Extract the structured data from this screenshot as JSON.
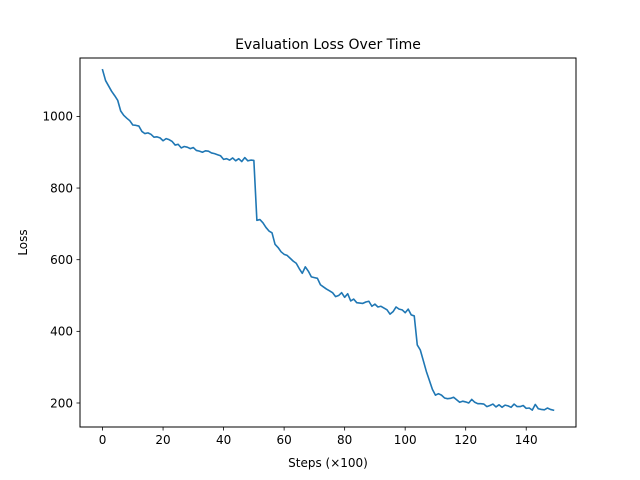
{
  "chart_data": {
    "type": "line",
    "title": "Evaluation Loss Over Time",
    "xlabel": "Steps (×100)",
    "ylabel": "Loss",
    "xlim": [
      -7.45,
      156.45
    ],
    "ylim": [
      133,
      1163
    ],
    "xticks": [
      0,
      20,
      40,
      60,
      80,
      100,
      120,
      140
    ],
    "yticks": [
      200,
      400,
      600,
      800,
      1000
    ],
    "grid": false,
    "line_color": "#1f77b4",
    "series": [
      {
        "values": [
          [
            0,
            1130
          ],
          [
            1,
            1100
          ],
          [
            2,
            1085
          ],
          [
            3,
            1070
          ],
          [
            4,
            1058
          ],
          [
            5,
            1045
          ],
          [
            6,
            1015
          ],
          [
            7,
            1003
          ],
          [
            8,
            995
          ],
          [
            9,
            988
          ],
          [
            10,
            976
          ],
          [
            11,
            975
          ],
          [
            12,
            973
          ],
          [
            13,
            958
          ],
          [
            14,
            952
          ],
          [
            15,
            954
          ],
          [
            16,
            950
          ],
          [
            17,
            942
          ],
          [
            18,
            943
          ],
          [
            19,
            940
          ],
          [
            20,
            932
          ],
          [
            21,
            938
          ],
          [
            22,
            935
          ],
          [
            23,
            930
          ],
          [
            24,
            920
          ],
          [
            25,
            922
          ],
          [
            26,
            912
          ],
          [
            27,
            916
          ],
          [
            28,
            914
          ],
          [
            29,
            910
          ],
          [
            30,
            913
          ],
          [
            31,
            905
          ],
          [
            32,
            903
          ],
          [
            33,
            900
          ],
          [
            34,
            904
          ],
          [
            35,
            903
          ],
          [
            36,
            898
          ],
          [
            37,
            896
          ],
          [
            38,
            893
          ],
          [
            39,
            890
          ],
          [
            40,
            880
          ],
          [
            41,
            882
          ],
          [
            42,
            878
          ],
          [
            43,
            884
          ],
          [
            44,
            876
          ],
          [
            45,
            882
          ],
          [
            46,
            874
          ],
          [
            47,
            885
          ],
          [
            48,
            876
          ],
          [
            49,
            878
          ],
          [
            50,
            877
          ],
          [
            51,
            710
          ],
          [
            52,
            712
          ],
          [
            53,
            703
          ],
          [
            54,
            690
          ],
          [
            55,
            680
          ],
          [
            56,
            675
          ],
          [
            57,
            643
          ],
          [
            58,
            634
          ],
          [
            59,
            622
          ],
          [
            60,
            615
          ],
          [
            61,
            612
          ],
          [
            62,
            604
          ],
          [
            63,
            596
          ],
          [
            64,
            590
          ],
          [
            65,
            575
          ],
          [
            66,
            562
          ],
          [
            67,
            580
          ],
          [
            68,
            568
          ],
          [
            69,
            552
          ],
          [
            70,
            550
          ],
          [
            71,
            548
          ],
          [
            72,
            530
          ],
          [
            73,
            524
          ],
          [
            74,
            518
          ],
          [
            75,
            513
          ],
          [
            76,
            508
          ],
          [
            77,
            497
          ],
          [
            78,
            500
          ],
          [
            79,
            508
          ],
          [
            80,
            495
          ],
          [
            81,
            505
          ],
          [
            82,
            485
          ],
          [
            83,
            490
          ],
          [
            84,
            480
          ],
          [
            85,
            479
          ],
          [
            86,
            478
          ],
          [
            87,
            482
          ],
          [
            88,
            484
          ],
          [
            89,
            470
          ],
          [
            90,
            476
          ],
          [
            91,
            468
          ],
          [
            92,
            470
          ],
          [
            93,
            465
          ],
          [
            94,
            460
          ],
          [
            95,
            448
          ],
          [
            96,
            455
          ],
          [
            97,
            468
          ],
          [
            98,
            462
          ],
          [
            99,
            460
          ],
          [
            100,
            452
          ],
          [
            101,
            462
          ],
          [
            102,
            446
          ],
          [
            103,
            443
          ],
          [
            104,
            362
          ],
          [
            105,
            348
          ],
          [
            106,
            318
          ],
          [
            107,
            288
          ],
          [
            108,
            263
          ],
          [
            109,
            238
          ],
          [
            110,
            222
          ],
          [
            111,
            226
          ],
          [
            112,
            222
          ],
          [
            113,
            214
          ],
          [
            114,
            212
          ],
          [
            115,
            213
          ],
          [
            116,
            216
          ],
          [
            117,
            209
          ],
          [
            118,
            202
          ],
          [
            119,
            205
          ],
          [
            120,
            203
          ],
          [
            121,
            200
          ],
          [
            122,
            210
          ],
          [
            123,
            202
          ],
          [
            124,
            198
          ],
          [
            125,
            198
          ],
          [
            126,
            197
          ],
          [
            127,
            190
          ],
          [
            128,
            193
          ],
          [
            129,
            197
          ],
          [
            130,
            189
          ],
          [
            131,
            195
          ],
          [
            132,
            188
          ],
          [
            133,
            194
          ],
          [
            134,
            192
          ],
          [
            135,
            188
          ],
          [
            136,
            197
          ],
          [
            137,
            190
          ],
          [
            138,
            190
          ],
          [
            139,
            193
          ],
          [
            140,
            185
          ],
          [
            141,
            186
          ],
          [
            142,
            180
          ],
          [
            143,
            196
          ],
          [
            144,
            184
          ],
          [
            145,
            182
          ],
          [
            146,
            181
          ],
          [
            147,
            186
          ],
          [
            148,
            182
          ],
          [
            149,
            180
          ]
        ]
      }
    ]
  }
}
